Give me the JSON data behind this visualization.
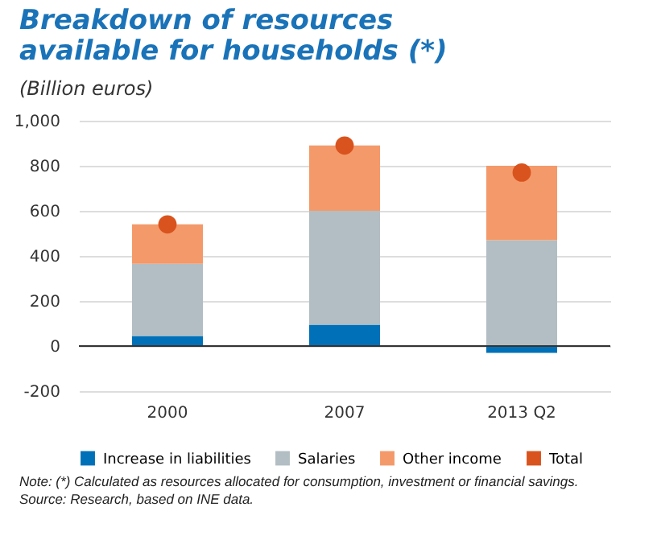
{
  "chart_data": {
    "type": "bar",
    "title": "Breakdown of resources available for households (*)",
    "subtitle": "(Billion euros)",
    "categories": [
      "2000",
      "2007",
      "2013 Q2"
    ],
    "stacked": true,
    "series": [
      {
        "name": "Increase in liabilities",
        "color": "#0070b8",
        "values": [
          45,
          95,
          -30
        ]
      },
      {
        "name": "Salaries",
        "color": "#b2bec3",
        "values": [
          320,
          505,
          470
        ]
      },
      {
        "name": "Other income",
        "color": "#f4996a",
        "values": [
          175,
          290,
          330
        ]
      },
      {
        "name": "Total",
        "type": "scatter",
        "color": "#d9531e",
        "values": [
          540,
          890,
          770
        ]
      }
    ],
    "ylim": [
      -200,
      1000
    ],
    "yticks": [
      -200,
      0,
      200,
      400,
      600,
      800,
      {
        "value": 1000,
        "label": "1,000"
      }
    ],
    "grid": "y",
    "legend": "bottom",
    "marker": "circle",
    "annotations": [
      "Note: (*) Calculated as resources allocated for consumption, investment or financial savings.",
      "Source: Research, based on INE data."
    ]
  }
}
